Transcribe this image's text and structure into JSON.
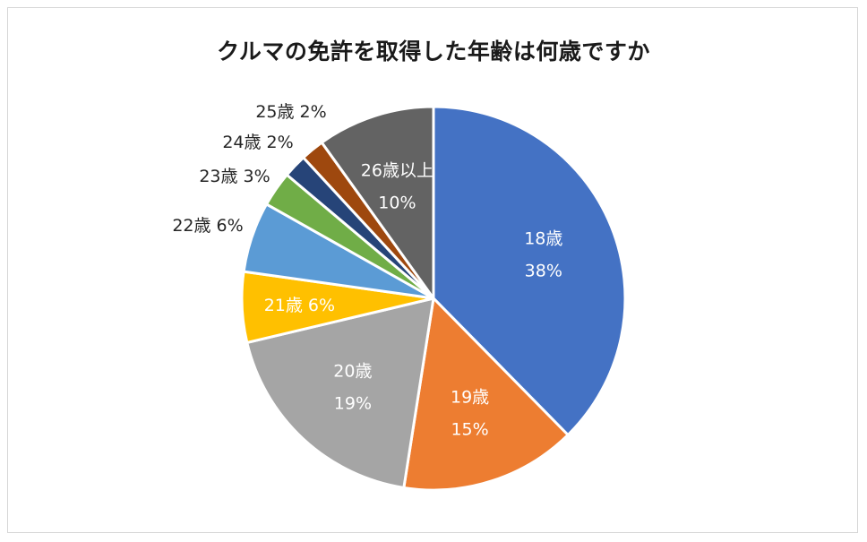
{
  "chart_data": {
    "type": "pie",
    "title": "クルマの免許を取得した年齢は何歳ですか",
    "slices": [
      {
        "label": "18歳",
        "value": 38,
        "display": "38%",
        "color": "#4472C4",
        "label_pos": "inside"
      },
      {
        "label": "19歳",
        "value": 15,
        "display": "15%",
        "color": "#ED7D31",
        "label_pos": "inside"
      },
      {
        "label": "20歳",
        "value": 19,
        "display": "19%",
        "color": "#A5A5A5",
        "label_pos": "inside"
      },
      {
        "label": "21歳",
        "value": 6,
        "display": "6%",
        "color": "#FFC000",
        "label_pos": "inside-oneline"
      },
      {
        "label": "22歳",
        "value": 6,
        "display": "6%",
        "color": "#5B9BD5",
        "label_pos": "outside"
      },
      {
        "label": "23歳",
        "value": 3,
        "display": "3%",
        "color": "#70AD47",
        "label_pos": "outside"
      },
      {
        "label": "24歳",
        "value": 2,
        "display": "2%",
        "color": "#264478",
        "label_pos": "outside"
      },
      {
        "label": "25歳",
        "value": 2,
        "display": "2%",
        "color": "#9E480E",
        "label_pos": "outside"
      },
      {
        "label": "26歳以上",
        "value": 10,
        "display": "10%",
        "color": "#636363",
        "label_pos": "inside"
      }
    ],
    "start": "12 o'clock",
    "direction": "clockwise"
  }
}
